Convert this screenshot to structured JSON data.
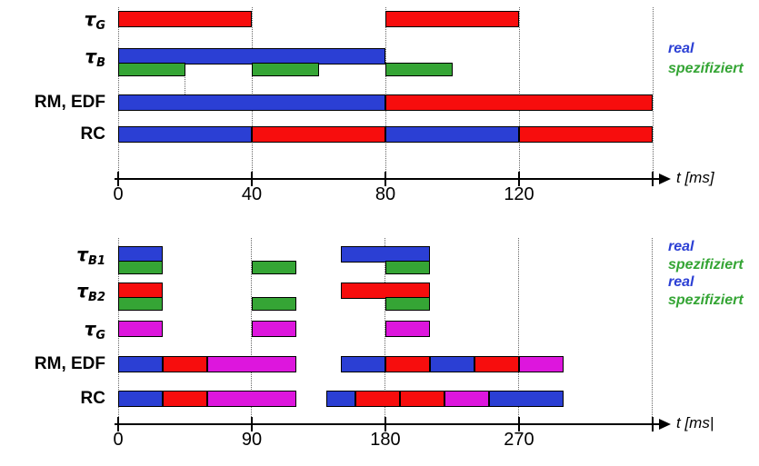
{
  "colors": {
    "blue": "#2b3fd4",
    "red": "#f70d0d",
    "green": "#35a535",
    "magenta": "#dd16dd",
    "text": "#000000",
    "background": "#ffffff"
  },
  "chart_data": [
    {
      "id": "top-panel",
      "type": "gantt",
      "time_unit": "ms",
      "axis": {
        "label": "t [ms]",
        "ticks": [
          0,
          40,
          80,
          120
        ],
        "end": 160
      },
      "legend": [
        {
          "text": "real",
          "color": "blue"
        },
        {
          "text": "spezifiziert",
          "color": "green"
        }
      ],
      "extra_gridlines": [
        20
      ],
      "rows": [
        {
          "name": "tau-G",
          "label": "τ",
          "sub": "G",
          "bars": [
            {
              "t0": 0,
              "t1": 40,
              "c": "red"
            },
            {
              "t0": 80,
              "t1": 120,
              "c": "red"
            }
          ]
        },
        {
          "name": "tau-B",
          "label": "τ",
          "sub": "B",
          "bars": [
            {
              "t0": 0,
              "t1": 80,
              "c": "blue"
            }
          ],
          "spec": [
            {
              "t0": 0,
              "t1": 20,
              "c": "green"
            },
            {
              "t0": 40,
              "t1": 60,
              "c": "green"
            },
            {
              "t0": 80,
              "t1": 100,
              "c": "green"
            }
          ]
        },
        {
          "name": "rm-edf",
          "label": "RM, EDF",
          "bars": [
            {
              "t0": 0,
              "t1": 80,
              "c": "blue"
            },
            {
              "t0": 80,
              "t1": 160,
              "c": "red"
            }
          ]
        },
        {
          "name": "rc",
          "label": "RC",
          "bars": [
            {
              "t0": 0,
              "t1": 40,
              "c": "blue"
            },
            {
              "t0": 40,
              "t1": 80,
              "c": "red"
            },
            {
              "t0": 80,
              "t1": 120,
              "c": "blue"
            },
            {
              "t0": 120,
              "t1": 160,
              "c": "red"
            }
          ]
        }
      ]
    },
    {
      "id": "bottom-panel",
      "type": "gantt",
      "time_unit": "ms",
      "axis": {
        "label": "t [ms|",
        "ticks": [
          0,
          90,
          180,
          270
        ],
        "end": 360
      },
      "legend": [
        {
          "text": "real",
          "color": "blue"
        },
        {
          "text": "spezifiziert",
          "color": "green"
        },
        {
          "text": "real",
          "color": "blue"
        },
        {
          "text": "spezifiziert",
          "color": "green"
        }
      ],
      "extra_gridlines": [],
      "rows": [
        {
          "name": "tau-B1",
          "label": "τ",
          "sub": "B1",
          "bars": [
            {
              "t0": 0,
              "t1": 30,
              "c": "blue"
            },
            {
              "t0": 150,
              "t1": 210,
              "c": "blue"
            }
          ],
          "spec": [
            {
              "t0": 0,
              "t1": 30,
              "c": "green"
            },
            {
              "t0": 90,
              "t1": 120,
              "c": "green"
            },
            {
              "t0": 180,
              "t1": 210,
              "c": "green"
            }
          ]
        },
        {
          "name": "tau-B2",
          "label": "τ",
          "sub": "B2",
          "bars": [
            {
              "t0": 0,
              "t1": 30,
              "c": "red"
            },
            {
              "t0": 150,
              "t1": 210,
              "c": "red"
            }
          ],
          "spec": [
            {
              "t0": 0,
              "t1": 30,
              "c": "green"
            },
            {
              "t0": 90,
              "t1": 120,
              "c": "green"
            },
            {
              "t0": 180,
              "t1": 210,
              "c": "green"
            }
          ]
        },
        {
          "name": "tau-G",
          "label": "τ",
          "sub": "G",
          "bars": [
            {
              "t0": 0,
              "t1": 30,
              "c": "magenta"
            },
            {
              "t0": 90,
              "t1": 120,
              "c": "magenta"
            },
            {
              "t0": 180,
              "t1": 210,
              "c": "magenta"
            }
          ]
        },
        {
          "name": "rm-edf",
          "label": "RM, EDF",
          "bars": [
            {
              "t0": 0,
              "t1": 30,
              "c": "blue"
            },
            {
              "t0": 30,
              "t1": 60,
              "c": "red"
            },
            {
              "t0": 60,
              "t1": 120,
              "c": "magenta"
            },
            {
              "t0": 150,
              "t1": 180,
              "c": "blue"
            },
            {
              "t0": 180,
              "t1": 210,
              "c": "red"
            },
            {
              "t0": 210,
              "t1": 240,
              "c": "blue"
            },
            {
              "t0": 240,
              "t1": 270,
              "c": "red"
            },
            {
              "t0": 270,
              "t1": 300,
              "c": "magenta"
            }
          ]
        },
        {
          "name": "rc",
          "label": "RC",
          "bars": [
            {
              "t0": 0,
              "t1": 30,
              "c": "blue"
            },
            {
              "t0": 30,
              "t1": 60,
              "c": "red"
            },
            {
              "t0": 60,
              "t1": 120,
              "c": "magenta"
            },
            {
              "t0": 140,
              "t1": 160,
              "c": "blue"
            },
            {
              "t0": 160,
              "t1": 190,
              "c": "red"
            },
            {
              "t0": 190,
              "t1": 220,
              "c": "red"
            },
            {
              "t0": 220,
              "t1": 250,
              "c": "magenta"
            },
            {
              "t0": 250,
              "t1": 300,
              "c": "blue"
            }
          ]
        }
      ]
    }
  ]
}
